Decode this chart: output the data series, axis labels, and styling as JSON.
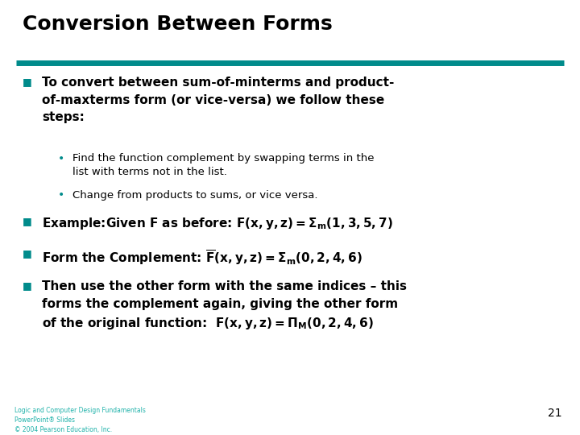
{
  "title": "Conversion Between Forms",
  "title_color": "#000000",
  "title_fontsize": 18,
  "bg_color": "#ffffff",
  "teal_color": "#008B8B",
  "bullet_color": "#008B8B",
  "text_color": "#000000",
  "footer_color": "#20B2AA",
  "footer_lines": [
    "Logic and Computer Design Fundamentals",
    "PowerPoint® Slides",
    "© 2004 Pearson Education, Inc."
  ],
  "page_number": "21",
  "rule_color": "#008B8B"
}
